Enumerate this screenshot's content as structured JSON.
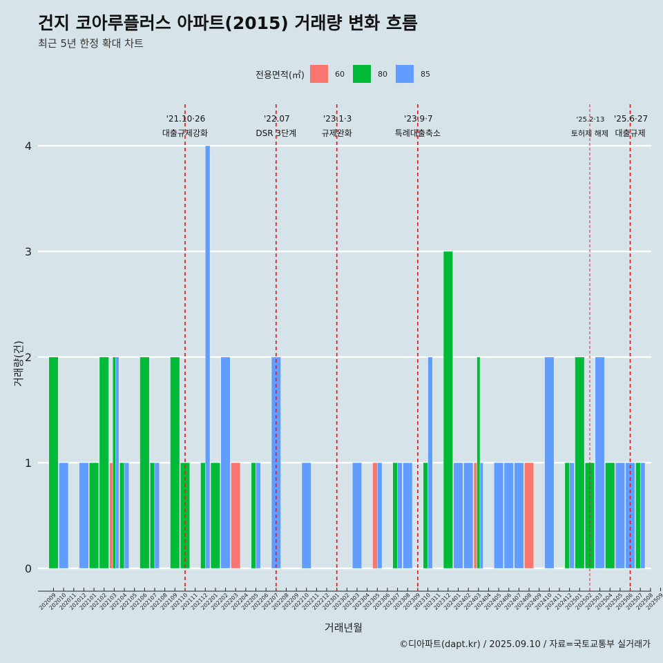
{
  "title": "건지 코아루플러스 아파트(2015) 거래량 변화 흐름",
  "subtitle": "최근 5년 한정 확대 차트",
  "caption": "©디아파트(dapt.kr) / 2025.09.10 / 자료=국토교통부 실거래가",
  "chart_data": {
    "type": "bar",
    "xlabel": "거래년월",
    "ylabel": "거래량(건)",
    "ylim": [
      0,
      4
    ],
    "yticks": [
      0,
      1,
      2,
      3,
      4
    ],
    "grid": true,
    "legend": {
      "title": "전용면적(㎡)",
      "position": "top",
      "entries": [
        {
          "label": "60",
          "color": "#f8766d"
        },
        {
          "label": "80",
          "color": "#00ba38"
        },
        {
          "label": "85",
          "color": "#619cff"
        }
      ]
    },
    "x_ticks": [
      "202009",
      "202010",
      "202011",
      "202012",
      "202101",
      "202102",
      "202103",
      "202104",
      "202105",
      "202106",
      "202107",
      "202108",
      "202109",
      "202110",
      "202111",
      "202112",
      "202201",
      "202202",
      "202203",
      "202204",
      "202205",
      "202206",
      "202207",
      "202208",
      "202209",
      "202210",
      "202211",
      "202212",
      "202301",
      "202302",
      "202303",
      "202304",
      "202305",
      "202306",
      "202307",
      "202308",
      "202309",
      "202310",
      "202311",
      "202312",
      "202401",
      "202402",
      "202403",
      "202404",
      "202405",
      "202406",
      "202407",
      "202408",
      "202409",
      "202410",
      "202411",
      "202412",
      "202501",
      "202502",
      "202503",
      "202504",
      "202505",
      "202506",
      "202507",
      "202508",
      "202509"
    ],
    "bars": [
      {
        "month": "202009",
        "area": "80",
        "value": 2,
        "width": 1.0
      },
      {
        "month": "202010",
        "area": "85",
        "value": 1,
        "width": 1.0
      },
      {
        "month": "202012",
        "area": "85",
        "value": 1,
        "width": 1.0
      },
      {
        "month": "202101",
        "area": "80",
        "value": 1,
        "width": 1.0
      },
      {
        "month": "202102",
        "area": "80",
        "value": 2,
        "width": 1.0
      },
      {
        "month": "202103",
        "area": "60",
        "value": 1,
        "width": 0.33
      },
      {
        "month": "202103",
        "area": "80",
        "value": 2,
        "width": 0.33
      },
      {
        "month": "202103",
        "area": "85",
        "value": 2,
        "width": 0.33
      },
      {
        "month": "202104",
        "area": "80",
        "value": 1,
        "width": 0.5
      },
      {
        "month": "202104",
        "area": "85",
        "value": 1,
        "width": 0.5
      },
      {
        "month": "202106",
        "area": "80",
        "value": 2,
        "width": 1.0
      },
      {
        "month": "202107",
        "area": "80",
        "value": 1,
        "width": 0.5
      },
      {
        "month": "202107",
        "area": "85",
        "value": 1,
        "width": 0.5
      },
      {
        "month": "202109",
        "area": "80",
        "value": 2,
        "width": 1.0
      },
      {
        "month": "202110",
        "area": "80",
        "value": 1,
        "width": 1.0
      },
      {
        "month": "202112",
        "area": "80",
        "value": 1,
        "width": 0.5
      },
      {
        "month": "202112",
        "area": "85",
        "value": 4,
        "width": 0.5
      },
      {
        "month": "202201",
        "area": "80",
        "value": 1,
        "width": 1.0
      },
      {
        "month": "202202",
        "area": "85",
        "value": 2,
        "width": 1.0
      },
      {
        "month": "202203",
        "area": "60",
        "value": 1,
        "width": 1.0
      },
      {
        "month": "202205",
        "area": "80",
        "value": 1,
        "width": 0.5
      },
      {
        "month": "202205",
        "area": "85",
        "value": 1,
        "width": 0.5
      },
      {
        "month": "202207",
        "area": "85",
        "value": 2,
        "width": 1.0
      },
      {
        "month": "202210",
        "area": "85",
        "value": 1,
        "width": 1.0
      },
      {
        "month": "202303",
        "area": "85",
        "value": 1,
        "width": 1.0
      },
      {
        "month": "202305",
        "area": "60",
        "value": 1,
        "width": 0.5
      },
      {
        "month": "202305",
        "area": "85",
        "value": 1,
        "width": 0.5
      },
      {
        "month": "202307",
        "area": "80",
        "value": 1,
        "width": 0.5
      },
      {
        "month": "202307",
        "area": "85",
        "value": 1,
        "width": 0.5
      },
      {
        "month": "202308",
        "area": "85",
        "value": 1,
        "width": 1.0
      },
      {
        "month": "202310",
        "area": "80",
        "value": 1,
        "width": 0.5
      },
      {
        "month": "202310",
        "area": "85",
        "value": 2,
        "width": 0.5
      },
      {
        "month": "202312",
        "area": "80",
        "value": 3,
        "width": 1.0
      },
      {
        "month": "202401",
        "area": "85",
        "value": 1,
        "width": 1.0
      },
      {
        "month": "202402",
        "area": "85",
        "value": 1,
        "width": 1.0
      },
      {
        "month": "202403",
        "area": "60",
        "value": 1,
        "width": 0.33
      },
      {
        "month": "202403",
        "area": "80",
        "value": 2,
        "width": 0.33
      },
      {
        "month": "202403",
        "area": "85",
        "value": 1,
        "width": 0.33
      },
      {
        "month": "202405",
        "area": "85",
        "value": 1,
        "width": 1.0
      },
      {
        "month": "202406",
        "area": "85",
        "value": 1,
        "width": 1.0
      },
      {
        "month": "202407",
        "area": "85",
        "value": 1,
        "width": 1.0
      },
      {
        "month": "202408",
        "area": "60",
        "value": 1,
        "width": 1.0
      },
      {
        "month": "202410",
        "area": "85",
        "value": 2,
        "width": 1.0
      },
      {
        "month": "202412",
        "area": "80",
        "value": 1,
        "width": 0.5
      },
      {
        "month": "202412",
        "area": "85",
        "value": 1,
        "width": 0.5
      },
      {
        "month": "202501",
        "area": "80",
        "value": 2,
        "width": 1.0
      },
      {
        "month": "202502",
        "area": "80",
        "value": 1,
        "width": 1.0
      },
      {
        "month": "202503",
        "area": "85",
        "value": 2,
        "width": 1.0
      },
      {
        "month": "202504",
        "area": "80",
        "value": 1,
        "width": 1.0
      },
      {
        "month": "202505",
        "area": "85",
        "value": 1,
        "width": 1.0
      },
      {
        "month": "202506",
        "area": "85",
        "value": 1,
        "width": 1.0
      },
      {
        "month": "202507",
        "area": "80",
        "value": 1,
        "width": 0.5
      },
      {
        "month": "202507",
        "area": "85",
        "value": 1,
        "width": 0.5
      }
    ],
    "events": [
      {
        "month": "202110",
        "date": "'21.10·26",
        "label": "대출규제강화",
        "style": "bold"
      },
      {
        "month": "202207",
        "date": "'22.07",
        "label": "DSR 3단계",
        "style": "bold"
      },
      {
        "month": "202301",
        "date": "'23.1·3",
        "label": "규제완화",
        "style": "bold"
      },
      {
        "month": "202309",
        "date": "'23.9·7",
        "label": "특례대출축소",
        "style": "bold"
      },
      {
        "month": "202502",
        "date": "'25.2·13",
        "label": "토허제 해제",
        "style": "thin"
      },
      {
        "month": "202506",
        "date": "'25.6·27",
        "label": "대출규제",
        "style": "bold"
      }
    ]
  }
}
